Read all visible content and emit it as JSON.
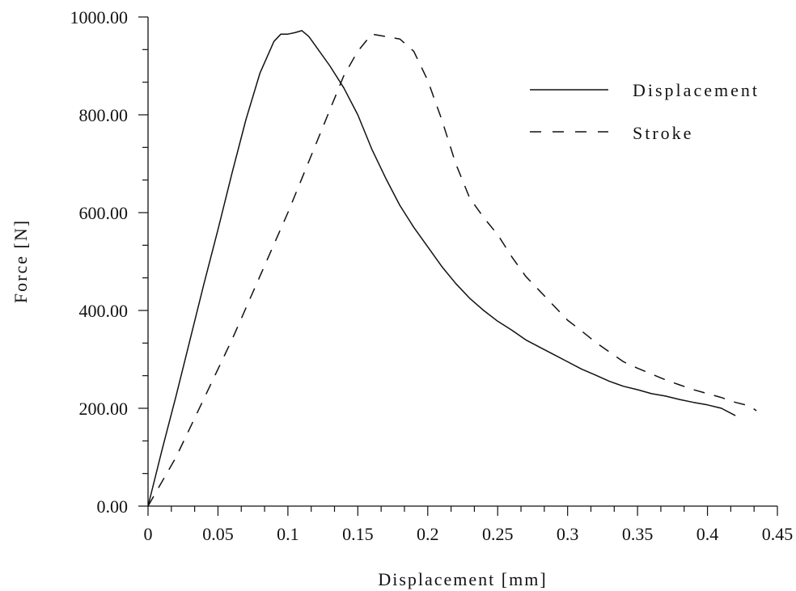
{
  "chart_data": {
    "type": "line",
    "title": "",
    "xlabel": "Displacement [mm]",
    "ylabel": "Force [N]",
    "xlim": [
      0,
      0.45
    ],
    "ylim": [
      0,
      1000
    ],
    "grid": false,
    "legend_position": "top-right",
    "x_ticks": [
      0,
      0.05,
      0.1,
      0.15,
      0.2,
      0.25,
      0.3,
      0.35,
      0.4,
      0.45
    ],
    "x_tick_labels": [
      "0",
      "0.05",
      "0.1",
      "0.15",
      "0.2",
      "0.25",
      "0.3",
      "0.35",
      "0.4",
      "0.45"
    ],
    "y_ticks": [
      0,
      200,
      400,
      600,
      800,
      1000
    ],
    "y_tick_labels": [
      "0.00",
      "200.00",
      "400.00",
      "600.00",
      "800.00",
      "1000.00"
    ],
    "series": [
      {
        "name": "Displacement",
        "style": "solid",
        "color": "#111111",
        "x": [
          0,
          0.01,
          0.02,
          0.03,
          0.04,
          0.05,
          0.06,
          0.07,
          0.08,
          0.09,
          0.095,
          0.1,
          0.105,
          0.11,
          0.115,
          0.12,
          0.13,
          0.14,
          0.15,
          0.16,
          0.17,
          0.18,
          0.19,
          0.2,
          0.21,
          0.22,
          0.23,
          0.24,
          0.25,
          0.26,
          0.27,
          0.28,
          0.29,
          0.3,
          0.31,
          0.32,
          0.33,
          0.34,
          0.35,
          0.36,
          0.37,
          0.38,
          0.39,
          0.4,
          0.41,
          0.42
        ],
        "y": [
          0,
          115,
          225,
          340,
          455,
          565,
          680,
          790,
          885,
          950,
          965,
          965,
          968,
          972,
          960,
          940,
          900,
          855,
          800,
          730,
          670,
          615,
          570,
          530,
          490,
          455,
          425,
          400,
          378,
          360,
          340,
          325,
          310,
          295,
          280,
          268,
          255,
          245,
          238,
          230,
          225,
          218,
          212,
          207,
          200,
          185
        ]
      },
      {
        "name": "Stroke",
        "style": "dashed",
        "color": "#111111",
        "x": [
          0,
          0.02,
          0.04,
          0.06,
          0.08,
          0.1,
          0.12,
          0.14,
          0.15,
          0.16,
          0.17,
          0.18,
          0.19,
          0.2,
          0.21,
          0.22,
          0.23,
          0.24,
          0.25,
          0.26,
          0.27,
          0.28,
          0.29,
          0.3,
          0.31,
          0.32,
          0.33,
          0.34,
          0.35,
          0.36,
          0.37,
          0.38,
          0.39,
          0.4,
          0.41,
          0.42,
          0.43,
          0.435
        ],
        "y": [
          0,
          100,
          220,
          340,
          470,
          600,
          740,
          880,
          930,
          965,
          960,
          955,
          930,
          870,
          790,
          700,
          630,
          590,
          555,
          510,
          470,
          440,
          410,
          380,
          358,
          335,
          315,
          295,
          282,
          270,
          258,
          248,
          238,
          230,
          222,
          212,
          205,
          195
        ]
      }
    ]
  }
}
